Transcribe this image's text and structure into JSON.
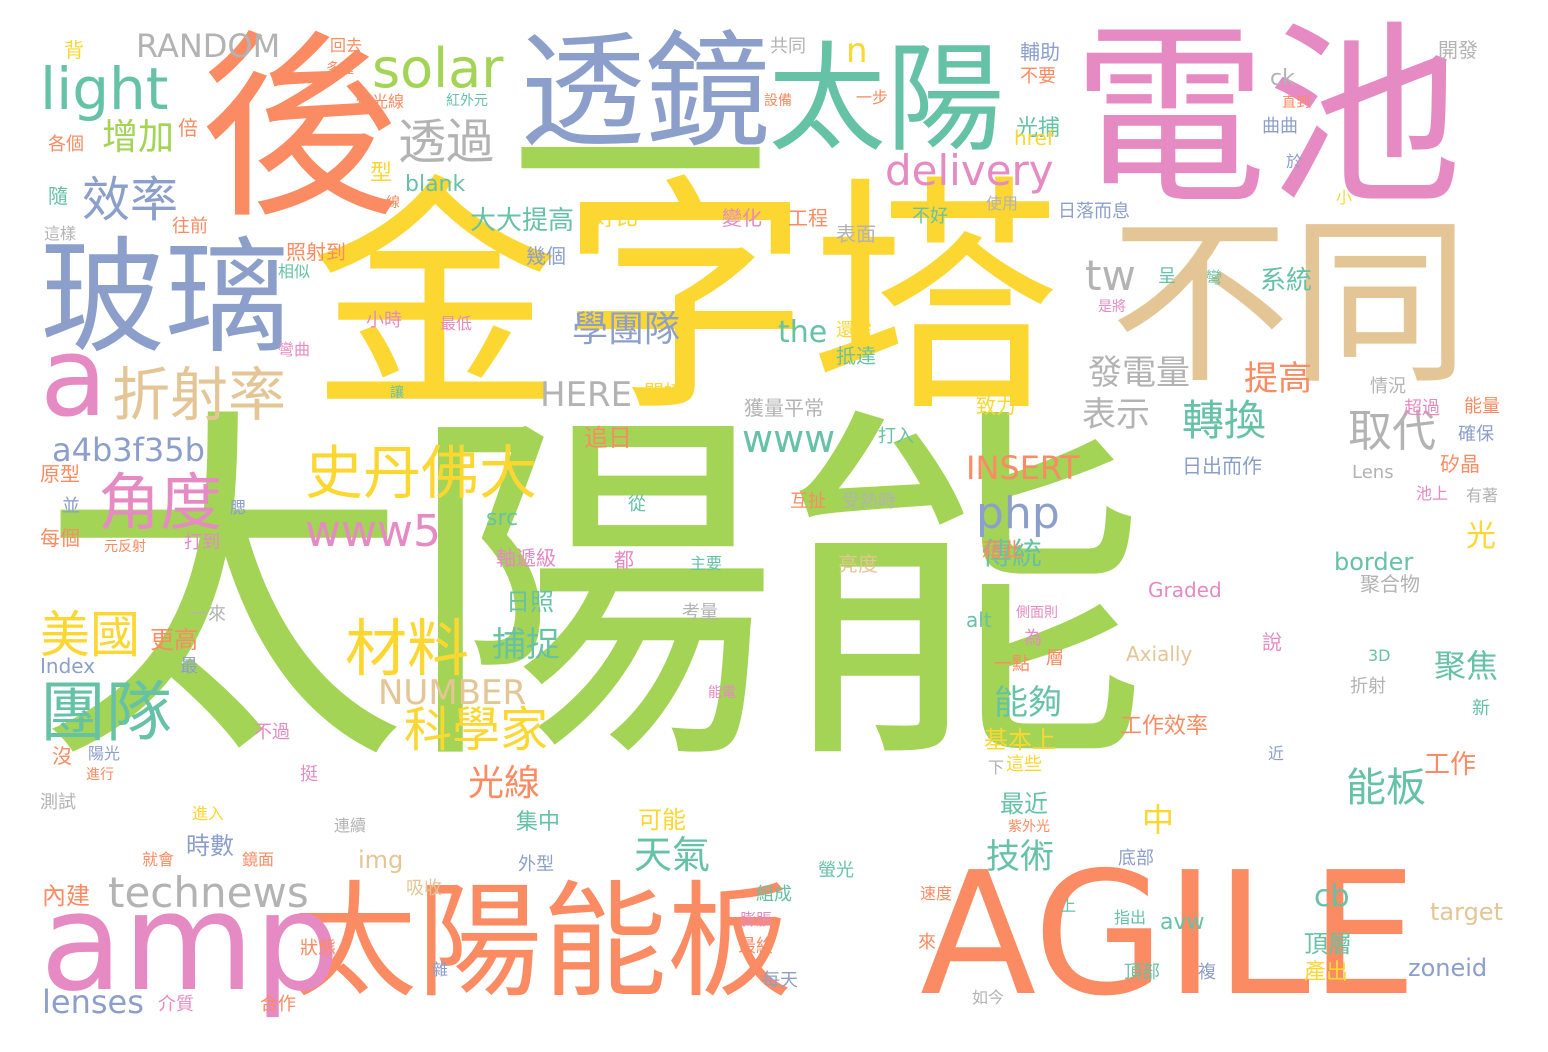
{
  "palette": {
    "green": "#a3d455",
    "yellow": "#fcd732",
    "pink": "#e58ac3",
    "orange": "#fb8b62",
    "blue": "#8c9fcb",
    "teal": "#66c2a5",
    "tan": "#e4c595",
    "gray": "#b3b3b3"
  },
  "words": [
    {
      "text": "太陽能",
      "c": "green"
    },
    {
      "text": "金字塔",
      "c": "yellow"
    },
    {
      "text": "電池",
      "c": "pink"
    },
    {
      "text": "後",
      "c": "orange"
    },
    {
      "text": "AGILE",
      "c": "orange"
    },
    {
      "text": "一",
      "c": "green"
    },
    {
      "text": "透鏡",
      "c": "blue"
    },
    {
      "text": "太陽",
      "c": "teal"
    },
    {
      "text": "不同",
      "c": "tan"
    },
    {
      "text": "玻璃",
      "c": "blue"
    },
    {
      "text": "太陽能板",
      "c": "orange"
    },
    {
      "text": "amp",
      "c": "pink"
    },
    {
      "text": "a",
      "c": "pink"
    },
    {
      "text": "light",
      "c": "teal"
    },
    {
      "text": "solar",
      "c": "green"
    },
    {
      "text": "RANDOM",
      "c": "gray"
    },
    {
      "text": "n",
      "c": "yellow"
    },
    {
      "text": "delivery",
      "c": "pink"
    },
    {
      "text": "透過",
      "c": "gray"
    },
    {
      "text": "增加",
      "c": "green"
    },
    {
      "text": "效率",
      "c": "blue"
    },
    {
      "text": "tw",
      "c": "gray"
    },
    {
      "text": "折射率",
      "c": "tan"
    },
    {
      "text": "史丹佛大",
      "c": "yellow"
    },
    {
      "text": "角度",
      "c": "pink"
    },
    {
      "text": "學團隊",
      "c": "blue"
    },
    {
      "text": "材料",
      "c": "yellow"
    },
    {
      "text": "科學家",
      "c": "yellow"
    },
    {
      "text": "團隊",
      "c": "teal"
    },
    {
      "text": "美國",
      "c": "yellow"
    },
    {
      "text": "technews",
      "c": "gray"
    },
    {
      "text": "www5",
      "c": "pink"
    },
    {
      "text": "www",
      "c": "teal"
    },
    {
      "text": "php",
      "c": "blue"
    },
    {
      "text": "a4b3f35b",
      "c": "blue"
    },
    {
      "text": "HERE",
      "c": "gray"
    },
    {
      "text": "NUMBER",
      "c": "tan"
    },
    {
      "text": "INSERT",
      "c": "orange"
    },
    {
      "text": "取代",
      "c": "gray"
    },
    {
      "text": "轉換",
      "c": "teal"
    },
    {
      "text": "發電量",
      "c": "gray"
    },
    {
      "text": "提高",
      "c": "orange"
    },
    {
      "text": "表示",
      "c": "gray"
    },
    {
      "text": "the",
      "c": "teal"
    },
    {
      "text": "系統",
      "c": "teal"
    },
    {
      "text": "大大提高",
      "c": "teal"
    },
    {
      "text": "好比",
      "c": "yellow"
    },
    {
      "text": "變化",
      "c": "pink"
    },
    {
      "text": "工程",
      "c": "orange"
    },
    {
      "text": "光捕",
      "c": "teal"
    },
    {
      "text": "blank",
      "c": "teal"
    },
    {
      "text": "型",
      "c": "yellow"
    },
    {
      "text": "能板",
      "c": "teal"
    },
    {
      "text": "聚焦",
      "c": "teal"
    },
    {
      "text": "光線",
      "c": "orange"
    },
    {
      "text": "捕捉",
      "c": "teal"
    },
    {
      "text": "天氣",
      "c": "teal"
    },
    {
      "text": "技術",
      "c": "teal"
    },
    {
      "text": "能夠",
      "c": "teal"
    },
    {
      "text": "傳統",
      "c": "teal"
    },
    {
      "text": "中",
      "c": "yellow"
    },
    {
      "text": "cb",
      "c": "teal"
    },
    {
      "text": "lenses",
      "c": "blue"
    },
    {
      "text": "zoneid",
      "c": "blue"
    },
    {
      "text": "target",
      "c": "tan"
    },
    {
      "text": "border",
      "c": "teal"
    },
    {
      "text": "Graded",
      "c": "pink"
    },
    {
      "text": "Axially",
      "c": "tan"
    },
    {
      "text": "Lens",
      "c": "gray"
    },
    {
      "text": "img",
      "c": "tan"
    },
    {
      "text": "src",
      "c": "teal"
    },
    {
      "text": "alt",
      "c": "teal"
    },
    {
      "text": "href",
      "c": "yellow"
    },
    {
      "text": "ck",
      "c": "gray"
    },
    {
      "text": "Index",
      "c": "blue"
    },
    {
      "text": "3D",
      "c": "teal"
    },
    {
      "text": "avw",
      "c": "teal"
    },
    {
      "text": "日照",
      "c": "teal"
    },
    {
      "text": "可能",
      "c": "yellow"
    },
    {
      "text": "追日",
      "c": "orange"
    },
    {
      "text": "集中",
      "c": "teal"
    },
    {
      "text": "時數",
      "c": "blue"
    },
    {
      "text": "更高",
      "c": "orange"
    },
    {
      "text": "工作",
      "c": "orange"
    },
    {
      "text": "最近",
      "c": "teal"
    },
    {
      "text": "基本上",
      "c": "yellow"
    },
    {
      "text": "工作效率",
      "c": "orange"
    },
    {
      "text": "頂層",
      "c": "teal"
    },
    {
      "text": "產出",
      "c": "yellow"
    },
    {
      "text": "光",
      "c": "yellow"
    },
    {
      "text": "矽晶",
      "c": "orange"
    },
    {
      "text": "日出而作",
      "c": "blue"
    },
    {
      "text": "日落而息",
      "c": "blue"
    },
    {
      "text": "獲量平常",
      "c": "gray"
    },
    {
      "text": "致力",
      "c": "yellow"
    },
    {
      "text": "打入",
      "c": "teal"
    },
    {
      "text": "互扯",
      "c": "orange"
    },
    {
      "text": "受熱時",
      "c": "gray"
    },
    {
      "text": "亮度",
      "c": "tan"
    },
    {
      "text": "軸遞級",
      "c": "pink"
    },
    {
      "text": "藉此",
      "c": "orange"
    },
    {
      "text": "聚合物",
      "c": "gray"
    },
    {
      "text": "確保",
      "c": "blue"
    },
    {
      "text": "能量",
      "c": "orange"
    },
    {
      "text": "開發",
      "c": "gray"
    },
    {
      "text": "曲曲",
      "c": "blue"
    },
    {
      "text": "輔助",
      "c": "blue"
    },
    {
      "text": "不要",
      "c": "orange"
    },
    {
      "text": "共同",
      "c": "gray"
    },
    {
      "text": "回去",
      "c": "orange"
    },
    {
      "text": "多種",
      "c": "orange"
    },
    {
      "text": "背",
      "c": "yellow"
    },
    {
      "text": "倍",
      "c": "orange"
    },
    {
      "text": "各個",
      "c": "orange"
    },
    {
      "text": "隨",
      "c": "teal"
    },
    {
      "text": "這樣",
      "c": "gray"
    },
    {
      "text": "往前",
      "c": "orange"
    },
    {
      "text": "照射到",
      "c": "orange"
    },
    {
      "text": "相似",
      "c": "teal"
    },
    {
      "text": "小時",
      "c": "pink"
    },
    {
      "text": "最低",
      "c": "pink"
    },
    {
      "text": "彎曲",
      "c": "pink"
    },
    {
      "text": "抵達",
      "c": "teal"
    },
    {
      "text": "還需",
      "c": "yellow"
    },
    {
      "text": "幾個",
      "c": "blue"
    },
    {
      "text": "表面",
      "c": "gray"
    },
    {
      "text": "使用",
      "c": "gray"
    },
    {
      "text": "不好",
      "c": "teal"
    },
    {
      "text": "呈",
      "c": "teal"
    },
    {
      "text": "彎",
      "c": "teal"
    },
    {
      "text": "是將",
      "c": "pink"
    },
    {
      "text": "情況",
      "c": "gray"
    },
    {
      "text": "超過",
      "c": "pink"
    },
    {
      "text": "有著",
      "c": "gray"
    },
    {
      "text": "池上",
      "c": "pink"
    },
    {
      "text": "間接",
      "c": "yellow"
    },
    {
      "text": "讓",
      "c": "teal"
    },
    {
      "text": "原型",
      "c": "orange"
    },
    {
      "text": "並",
      "c": "blue"
    },
    {
      "text": "每個",
      "c": "orange"
    },
    {
      "text": "元反射",
      "c": "orange"
    },
    {
      "text": "打到",
      "c": "pink"
    },
    {
      "text": "腮",
      "c": "blue"
    },
    {
      "text": "從",
      "c": "teal"
    },
    {
      "text": "都",
      "c": "pink"
    },
    {
      "text": "主要",
      "c": "teal"
    },
    {
      "text": "考量",
      "c": "gray"
    },
    {
      "text": "一來",
      "c": "gray"
    },
    {
      "text": "最",
      "c": "blue"
    },
    {
      "text": "能電",
      "c": "pink"
    },
    {
      "text": "一點",
      "c": "orange"
    },
    {
      "text": "為",
      "c": "pink"
    },
    {
      "text": "層",
      "c": "orange"
    },
    {
      "text": "說",
      "c": "pink"
    },
    {
      "text": "折射",
      "c": "gray"
    },
    {
      "text": "新",
      "c": "teal"
    },
    {
      "text": "近",
      "c": "blue"
    },
    {
      "text": "側面則",
      "c": "pink"
    },
    {
      "text": "下",
      "c": "gray"
    },
    {
      "text": "這些",
      "c": "yellow"
    },
    {
      "text": "沒",
      "c": "orange"
    },
    {
      "text": "陽光",
      "c": "blue"
    },
    {
      "text": "進行",
      "c": "orange"
    },
    {
      "text": "不過",
      "c": "pink"
    },
    {
      "text": "測試",
      "c": "gray"
    },
    {
      "text": "挺",
      "c": "pink"
    },
    {
      "text": "進入",
      "c": "yellow"
    },
    {
      "text": "連續",
      "c": "gray"
    },
    {
      "text": "就會",
      "c": "orange"
    },
    {
      "text": "鏡面",
      "c": "orange"
    },
    {
      "text": "外型",
      "c": "blue"
    },
    {
      "text": "底部",
      "c": "blue"
    },
    {
      "text": "紫外光",
      "c": "orange"
    },
    {
      "text": "螢光",
      "c": "teal"
    },
    {
      "text": "吸收",
      "c": "tan"
    },
    {
      "text": "內建",
      "c": "orange"
    },
    {
      "text": "組成",
      "c": "teal"
    },
    {
      "text": "膨脹",
      "c": "pink"
    },
    {
      "text": "速度",
      "c": "orange"
    },
    {
      "text": "指出",
      "c": "teal"
    },
    {
      "text": "上",
      "c": "teal"
    },
    {
      "text": "最終",
      "c": "orange"
    },
    {
      "text": "每天",
      "c": "blue"
    },
    {
      "text": "來",
      "c": "orange"
    },
    {
      "text": "狀態",
      "c": "orange"
    },
    {
      "text": "雜",
      "c": "blue"
    },
    {
      "text": "頂部",
      "c": "teal"
    },
    {
      "text": "複",
      "c": "blue"
    },
    {
      "text": "介質",
      "c": "pink"
    },
    {
      "text": "合作",
      "c": "orange"
    },
    {
      "text": "如今",
      "c": "gray"
    },
    {
      "text": "但光線",
      "c": "orange"
    },
    {
      "text": "紅外元",
      "c": "teal"
    },
    {
      "text": "設備",
      "c": "orange"
    },
    {
      "text": "一步",
      "c": "orange"
    },
    {
      "text": "線",
      "c": "orange"
    },
    {
      "text": "於",
      "c": "blue"
    },
    {
      "text": "直到",
      "c": "orange"
    },
    {
      "text": "小",
      "c": "yellow"
    }
  ]
}
